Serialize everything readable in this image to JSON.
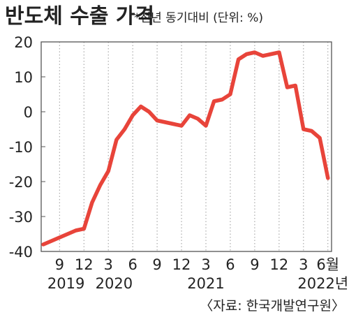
{
  "chart_data": {
    "type": "line",
    "title": "반도체 수출 가격",
    "subtitle": "*전년 동기대비 (단위: %)",
    "source": "〈자료: 한국개발연구원〉",
    "ylim": [
      -40,
      20
    ],
    "yticks": [
      20,
      10,
      0,
      -10,
      -20,
      -30,
      -40
    ],
    "grid": "vertical dotted",
    "x_tick_labels": [
      {
        "label": "9",
        "t": 2
      },
      {
        "label": "12",
        "t": 5
      },
      {
        "label": "3",
        "t": 8
      },
      {
        "label": "6",
        "t": 11
      },
      {
        "label": "9",
        "t": 14
      },
      {
        "label": "12",
        "t": 17
      },
      {
        "label": "3",
        "t": 20
      },
      {
        "label": "6",
        "t": 23
      },
      {
        "label": "9",
        "t": 26
      },
      {
        "label": "12",
        "t": 29
      },
      {
        "label": "3",
        "t": 32
      },
      {
        "label": "6월",
        "t": 35
      }
    ],
    "year_labels": [
      {
        "label": "2019",
        "t": 2.8
      },
      {
        "label": "2020",
        "t": 8.7
      },
      {
        "label": "2021",
        "t": 20
      },
      {
        "label": "2022년",
        "t": 34.4
      }
    ],
    "series": [
      {
        "color": "#e8443a",
        "x": [
          "2019-07",
          "2019-08",
          "2019-09",
          "2019-10",
          "2019-11",
          "2019-12",
          "2020-01",
          "2020-02",
          "2020-03",
          "2020-04",
          "2020-05",
          "2020-06",
          "2020-07",
          "2020-08",
          "2020-09",
          "2020-10",
          "2020-11",
          "2020-12",
          "2021-01",
          "2021-02",
          "2021-03",
          "2021-04",
          "2021-05",
          "2021-06",
          "2021-07",
          "2021-08",
          "2021-09",
          "2021-10",
          "2021-11",
          "2021-12",
          "2022-01",
          "2022-02",
          "2022-03",
          "2022-04",
          "2022-05",
          "2022-06"
        ],
        "values": [
          -38,
          -37,
          -36,
          -35,
          -34,
          -33.5,
          -26,
          -21,
          -17,
          -8,
          -5,
          -1,
          1.5,
          0,
          -2.5,
          -3,
          -3.5,
          -4,
          -1,
          -2,
          -4,
          3,
          3.5,
          5,
          15,
          16.5,
          17,
          16,
          16.5,
          17,
          7,
          7.5,
          -5,
          -5.5,
          -7.5,
          -19
        ]
      }
    ]
  }
}
